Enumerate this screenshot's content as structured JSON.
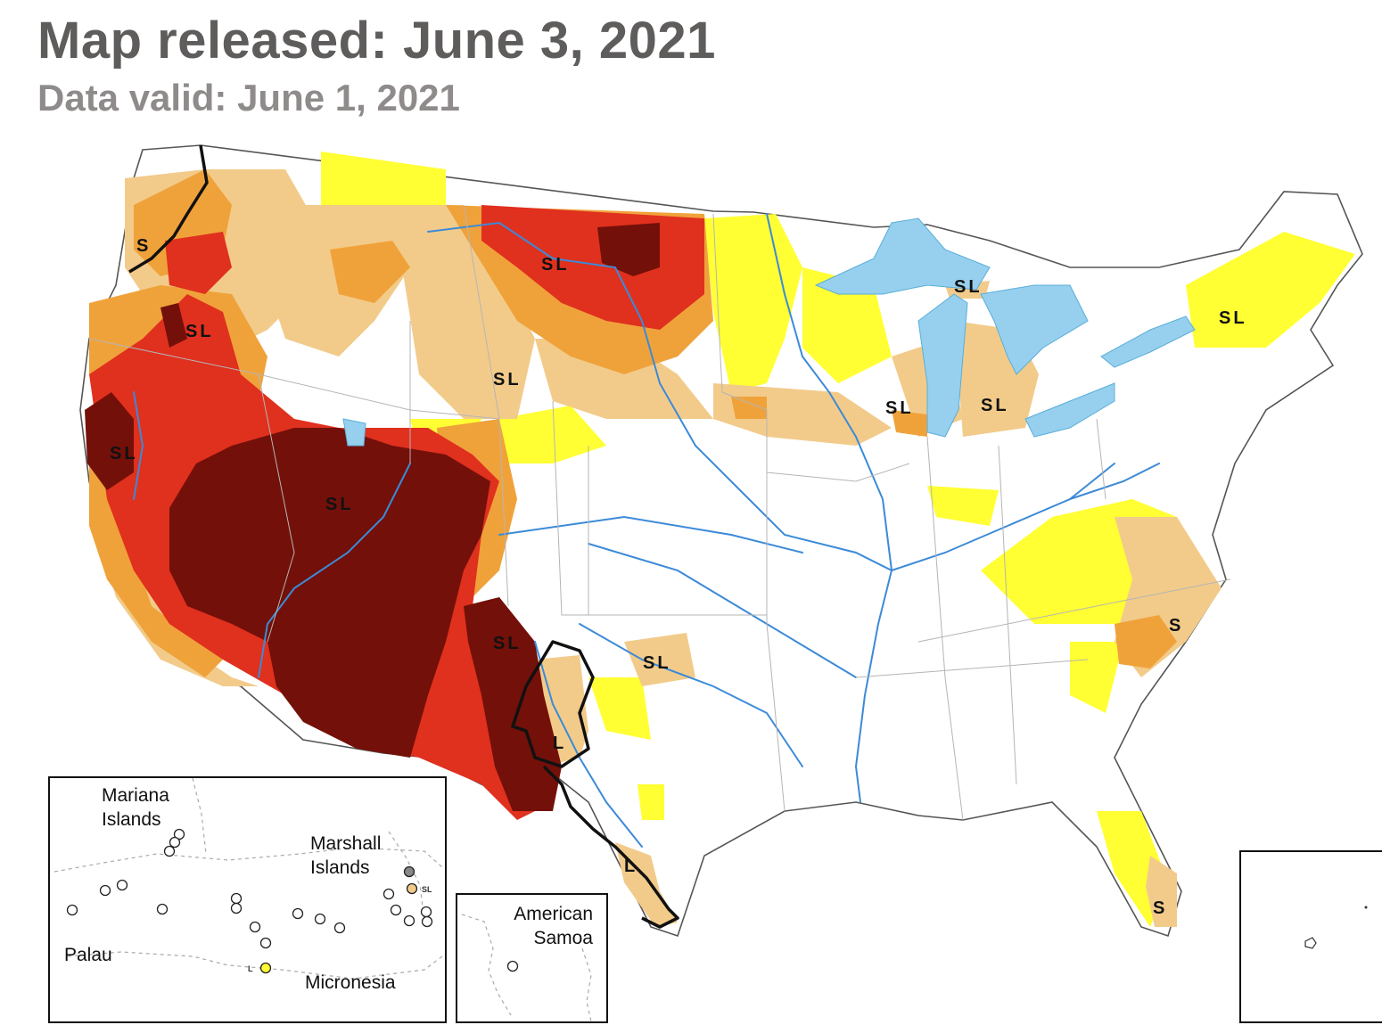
{
  "header": {
    "title": "Map released: June 3, 2021",
    "subtitle": "Data valid: June 1, 2021"
  },
  "colors": {
    "D0": "#ffff33",
    "D1": "#f2cb8a",
    "D2": "#f0a23a",
    "D3": "#e0301e",
    "D4": "#731009",
    "water": "#96d0ee",
    "river": "#3c8ad8",
    "border": "#b5b5b5"
  },
  "impact_labels": [
    "S",
    "SL",
    "SL",
    "SL",
    "SL",
    "SL",
    "SL",
    "SL",
    "SL",
    "SL",
    "SL",
    "SL",
    "L",
    "L",
    "S",
    "S"
  ],
  "insets": {
    "pacific": {
      "mariana": "Mariana\nIslands",
      "marshall": "Marshall\nIslands",
      "palau": "Palau",
      "micronesia": "Micronesia",
      "marshall_mark": "SL",
      "micronesia_mark": "L"
    },
    "samoa": {
      "label": "American\nSamoa"
    }
  }
}
